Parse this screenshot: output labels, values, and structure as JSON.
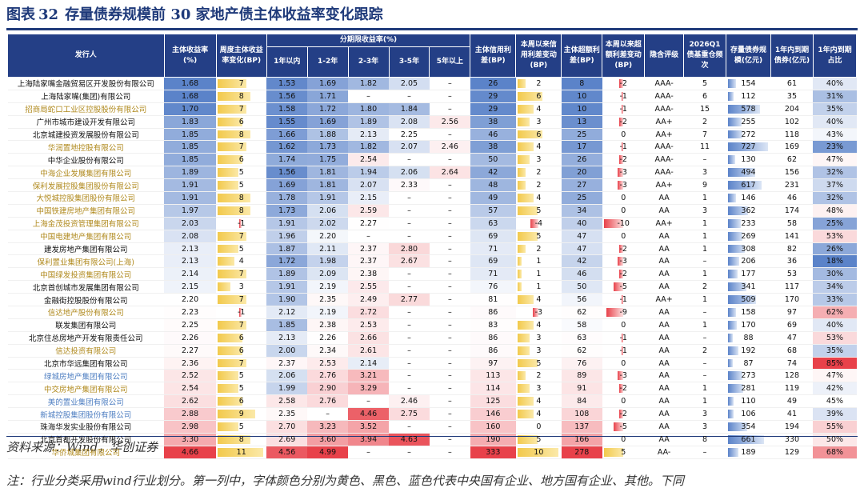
{
  "title": {
    "label": "图表",
    "number": "32",
    "text": "存量债券规模前 30 家地产债主体收益率变化跟踪"
  },
  "headers": {
    "issuer": "发行人",
    "yield": "主体收益率(%)",
    "weekly": "周度主体收益率变化(BP)",
    "term_group": "分期限收益率(%)",
    "terms": [
      "1年以内",
      "1-2年",
      "2-3年",
      "3-5年",
      "5年以上"
    ],
    "credit_spread": "主体信用利差(BP)",
    "credit_chg": "本周以来信用利差变动(BP)",
    "excess_spread": "主体超额利差(BP)",
    "excess_chg": "本周以来超额利差变动(BP)",
    "rating": "隐含评级",
    "freq": "2026Q1债基重仓频次",
    "stock": "存量债券规模(亿元)",
    "due": "1年内到期债券(亿元)",
    "due_ratio": "1年内到期占比"
  },
  "rows": [
    {
      "issuer": "上海陆家嘴金融贸易区开发股份有限公司",
      "color": "black",
      "yield": "1.68",
      "wk": 7,
      "t1": "1.53",
      "t2": "1.69",
      "t3": "1.82",
      "t4": "2.05",
      "t5": "–",
      "cs": "26",
      "cc": 2,
      "es": "8",
      "ec": -2,
      "rating": "AAA-",
      "freq": "5",
      "stock": 154,
      "due": "61",
      "ratio": "40%"
    },
    {
      "issuer": "上海陆家嘴(集团)有限公司",
      "color": "black",
      "yield": "1.68",
      "wk": 8,
      "t1": "1.56",
      "t2": "1.71",
      "t3": "–",
      "t4": "–",
      "t5": "–",
      "cs": "29",
      "cc": 6,
      "es": "10",
      "ec": -1,
      "rating": "AAA-",
      "freq": "6",
      "stock": 112,
      "due": "35",
      "ratio": "31%"
    },
    {
      "issuer": "招商局蛇口工业区控股股份有限公司",
      "color": "gold",
      "yield": "1.70",
      "wk": 7,
      "t1": "1.58",
      "t2": "1.72",
      "t3": "1.80",
      "t4": "1.84",
      "t5": "–",
      "cs": "29",
      "cc": 4,
      "es": "10",
      "ec": -1,
      "rating": "AAA-",
      "freq": "15",
      "stock": 578,
      "due": "204",
      "ratio": "35%"
    },
    {
      "issuer": "广州市城市建设开发有限公司",
      "color": "black",
      "yield": "1.83",
      "wk": 6,
      "t1": "1.55",
      "t2": "1.69",
      "t3": "1.89",
      "t4": "2.08",
      "t5": "2.56",
      "cs": "38",
      "cc": 3,
      "es": "13",
      "ec": -2,
      "rating": "AA+",
      "freq": "2",
      "stock": 255,
      "due": "102",
      "ratio": "40%"
    },
    {
      "issuer": "北京城建投资发展股份有限公司",
      "color": "black",
      "yield": "1.85",
      "wk": 8,
      "t1": "1.66",
      "t2": "1.88",
      "t3": "2.13",
      "t4": "2.25",
      "t5": "–",
      "cs": "46",
      "cc": 6,
      "es": "25",
      "ec": 0,
      "rating": "AA+",
      "freq": "7",
      "stock": 272,
      "due": "118",
      "ratio": "43%"
    },
    {
      "issuer": "华润置地控股有限公司",
      "color": "gold",
      "yield": "1.85",
      "wk": 7,
      "t1": "1.62",
      "t2": "1.73",
      "t3": "1.82",
      "t4": "2.07",
      "t5": "2.46",
      "cs": "38",
      "cc": 4,
      "es": "17",
      "ec": -1,
      "rating": "AAA-",
      "freq": "11",
      "stock": 727,
      "due": "169",
      "ratio": "23%"
    },
    {
      "issuer": "中华企业股份有限公司",
      "color": "black",
      "yield": "1.85",
      "wk": 6,
      "t1": "1.74",
      "t2": "1.75",
      "t3": "2.54",
      "t4": "–",
      "t5": "–",
      "cs": "50",
      "cc": 3,
      "es": "26",
      "ec": -2,
      "rating": "AAA-",
      "freq": "–",
      "stock": 130,
      "due": "62",
      "ratio": "47%"
    },
    {
      "issuer": "中海企业发展集团有限公司",
      "color": "gold",
      "yield": "1.89",
      "wk": 5,
      "t1": "1.56",
      "t2": "1.81",
      "t3": "1.94",
      "t4": "2.06",
      "t5": "2.64",
      "cs": "42",
      "cc": 2,
      "es": "20",
      "ec": -3,
      "rating": "AAA-",
      "freq": "3",
      "stock": 494,
      "due": "156",
      "ratio": "32%"
    },
    {
      "issuer": "保利发展控股集团股份有限公司",
      "color": "gold",
      "yield": "1.91",
      "wk": 5,
      "t1": "1.69",
      "t2": "1.81",
      "t3": "2.07",
      "t4": "2.33",
      "t5": "–",
      "cs": "48",
      "cc": 2,
      "es": "27",
      "ec": -3,
      "rating": "AA+",
      "freq": "9",
      "stock": 617,
      "due": "231",
      "ratio": "37%"
    },
    {
      "issuer": "大悦城控股集团股份有限公司",
      "color": "gold",
      "yield": "1.91",
      "wk": 8,
      "t1": "1.78",
      "t2": "1.91",
      "t3": "2.15",
      "t4": "–",
      "t5": "–",
      "cs": "49",
      "cc": 4,
      "es": "25",
      "ec": 0,
      "rating": "AA",
      "freq": "1",
      "stock": 146,
      "due": "46",
      "ratio": "32%"
    },
    {
      "issuer": "中国铁建房地产集团有限公司",
      "color": "gold",
      "yield": "1.97",
      "wk": 8,
      "t1": "1.73",
      "t2": "2.06",
      "t3": "2.59",
      "t4": "–",
      "t5": "–",
      "cs": "57",
      "cc": 5,
      "es": "34",
      "ec": 0,
      "rating": "AA",
      "freq": "3",
      "stock": 362,
      "due": "174",
      "ratio": "48%"
    },
    {
      "issuer": "上海金茂投资管理集团有限公司",
      "color": "gold",
      "yield": "2.03",
      "wk": -1,
      "t1": "1.91",
      "t2": "2.02",
      "t3": "2.27",
      "t4": "–",
      "t5": "–",
      "cs": "63",
      "cc": -4,
      "es": "40",
      "ec": -10,
      "rating": "AA+",
      "freq": "1",
      "stock": 233,
      "due": "58",
      "ratio": "25%"
    },
    {
      "issuer": "中国电建地产集团有限公司",
      "color": "gold",
      "yield": "2.08",
      "wk": 7,
      "t1": "1.96",
      "t2": "2.20",
      "t3": "–",
      "t4": "–",
      "t5": "–",
      "cs": "69",
      "cc": 5,
      "es": "47",
      "ec": 0,
      "rating": "AA",
      "freq": "1",
      "stock": 269,
      "due": "141",
      "ratio": "53%"
    },
    {
      "issuer": "建发房地产集团有限公司",
      "color": "black",
      "yield": "2.13",
      "wk": 5,
      "t1": "1.87",
      "t2": "2.11",
      "t3": "2.37",
      "t4": "2.80",
      "t5": "–",
      "cs": "71",
      "cc": 2,
      "es": "47",
      "ec": -2,
      "rating": "AA",
      "freq": "1",
      "stock": 308,
      "due": "82",
      "ratio": "26%"
    },
    {
      "issuer": "保利置业集团有限公司(上海)",
      "color": "gold",
      "yield": "2.13",
      "wk": 4,
      "t1": "1.72",
      "t2": "1.98",
      "t3": "2.37",
      "t4": "2.67",
      "t5": "–",
      "cs": "69",
      "cc": 1,
      "es": "42",
      "ec": -3,
      "rating": "AA",
      "freq": "–",
      "stock": 206,
      "due": "36",
      "ratio": "18%"
    },
    {
      "issuer": "中国绿发投资集团有限公司",
      "color": "gold",
      "yield": "2.14",
      "wk": 7,
      "t1": "1.89",
      "t2": "2.09",
      "t3": "2.38",
      "t4": "–",
      "t5": "–",
      "cs": "71",
      "cc": 1,
      "es": "46",
      "ec": -2,
      "rating": "AA",
      "freq": "1",
      "stock": 177,
      "due": "53",
      "ratio": "30%"
    },
    {
      "issuer": "北京首创城市发展集团有限公司",
      "color": "black",
      "yield": "2.15",
      "wk": 3,
      "t1": "1.91",
      "t2": "2.19",
      "t3": "2.55",
      "t4": "–",
      "t5": "–",
      "cs": "76",
      "cc": 1,
      "es": "50",
      "ec": -5,
      "rating": "AA",
      "freq": "2",
      "stock": 341,
      "due": "117",
      "ratio": "34%"
    },
    {
      "issuer": "金融街控股股份有限公司",
      "color": "black",
      "yield": "2.20",
      "wk": 7,
      "t1": "1.90",
      "t2": "2.35",
      "t3": "2.49",
      "t4": "2.77",
      "t5": "–",
      "cs": "81",
      "cc": 4,
      "es": "56",
      "ec": -1,
      "rating": "AA+",
      "freq": "1",
      "stock": 509,
      "due": "170",
      "ratio": "33%"
    },
    {
      "issuer": "信达地产股份有限公司",
      "color": "gold",
      "yield": "2.23",
      "wk": -1,
      "t1": "2.12",
      "t2": "2.19",
      "t3": "2.72",
      "t4": "–",
      "t5": "–",
      "cs": "86",
      "cc": -3,
      "es": "62",
      "ec": -9,
      "rating": "AA",
      "freq": "–",
      "stock": 158,
      "due": "97",
      "ratio": "62%"
    },
    {
      "issuer": "联发集团有限公司",
      "color": "black",
      "yield": "2.25",
      "wk": 7,
      "t1": "1.85",
      "t2": "2.38",
      "t3": "2.53",
      "t4": "–",
      "t5": "–",
      "cs": "83",
      "cc": 4,
      "es": "58",
      "ec": 0,
      "rating": "AA",
      "freq": "1",
      "stock": 170,
      "due": "69",
      "ratio": "40%"
    },
    {
      "issuer": "北京住总房地产开发有限责任公司",
      "color": "black",
      "yield": "2.26",
      "wk": 6,
      "t1": "2.13",
      "t2": "2.26",
      "t3": "2.66",
      "t4": "–",
      "t5": "–",
      "cs": "86",
      "cc": 3,
      "es": "63",
      "ec": -1,
      "rating": "AA",
      "freq": "–",
      "stock": 88,
      "due": "47",
      "ratio": "53%"
    },
    {
      "issuer": "信达投资有限公司",
      "color": "gold",
      "yield": "2.27",
      "wk": 6,
      "t1": "2.00",
      "t2": "2.34",
      "t3": "2.61",
      "t4": "–",
      "t5": "–",
      "cs": "86",
      "cc": 3,
      "es": "62",
      "ec": -1,
      "rating": "AA",
      "freq": "2",
      "stock": 192,
      "due": "68",
      "ratio": "35%"
    },
    {
      "issuer": "北京市华远集团有限公司",
      "color": "black",
      "yield": "2.36",
      "wk": 7,
      "t1": "2.37",
      "t2": "2.53",
      "t3": "2.14",
      "t4": "–",
      "t5": "–",
      "cs": "97",
      "cc": 5,
      "es": "76",
      "ec": 0,
      "rating": "AA",
      "freq": "–",
      "stock": 87,
      "due": "74",
      "ratio": "85%"
    },
    {
      "issuer": "绿城房地产集团有限公司",
      "color": "blue",
      "yield": "2.52",
      "wk": 5,
      "t1": "2.06",
      "t2": "2.76",
      "t3": "3.21",
      "t4": "–",
      "t5": "–",
      "cs": "113",
      "cc": 2,
      "es": "89",
      "ec": -3,
      "rating": "AA",
      "freq": "–",
      "stock": 273,
      "due": "128",
      "ratio": "47%"
    },
    {
      "issuer": "中交房地产集团有限公司",
      "color": "gold",
      "yield": "2.54",
      "wk": 5,
      "t1": "1.99",
      "t2": "2.90",
      "t3": "3.29",
      "t4": "–",
      "t5": "–",
      "cs": "114",
      "cc": 3,
      "es": "91",
      "ec": -2,
      "rating": "AA",
      "freq": "1",
      "stock": 281,
      "due": "119",
      "ratio": "42%"
    },
    {
      "issuer": "美的置业集团有限公司",
      "color": "blue",
      "yield": "2.62",
      "wk": 6,
      "t1": "2.58",
      "t2": "2.76",
      "t3": "–",
      "t4": "2.46",
      "t5": "–",
      "cs": "125",
      "cc": 4,
      "es": "84",
      "ec": 0,
      "rating": "AA",
      "freq": "1",
      "stock": 110,
      "due": "49",
      "ratio": "45%"
    },
    {
      "issuer": "新城控股集团股份有限公司",
      "color": "blue",
      "yield": "2.88",
      "wk": 9,
      "t1": "2.35",
      "t2": "–",
      "t3": "4.46",
      "t4": "2.75",
      "t5": "–",
      "cs": "146",
      "cc": 4,
      "es": "108",
      "ec": -2,
      "rating": "AA",
      "freq": "3",
      "stock": 106,
      "due": "41",
      "ratio": "39%"
    },
    {
      "issuer": "珠海华发实业股份有限公司",
      "color": "black",
      "yield": "2.98",
      "wk": 5,
      "t1": "2.70",
      "t2": "3.23",
      "t3": "3.52",
      "t4": "–",
      "t5": "–",
      "cs": "160",
      "cc": 0,
      "es": "137",
      "ec": -5,
      "rating": "AA",
      "freq": "3",
      "stock": 354,
      "due": "194",
      "ratio": "55%"
    },
    {
      "issuer": "北京首都开发股份有限公司",
      "color": "black",
      "yield": "3.30",
      "wk": 8,
      "t1": "2.69",
      "t2": "3.60",
      "t3": "3.94",
      "t4": "4.63",
      "t5": "–",
      "cs": "190",
      "cc": 5,
      "es": "166",
      "ec": 0,
      "rating": "AA",
      "freq": "8",
      "stock": 661,
      "due": "330",
      "ratio": "50%"
    },
    {
      "issuer": "华侨城集团有限公司",
      "color": "gold",
      "yield": "4.66",
      "wk": 11,
      "t1": "4.56",
      "t2": "4.99",
      "t3": "–",
      "t4": "–",
      "t5": "–",
      "cs": "333",
      "cc": 10,
      "es": "278",
      "ec": 5,
      "rating": "AA-",
      "freq": "–",
      "stock": 189,
      "due": "129",
      "ratio": "68%"
    }
  ],
  "footer": {
    "source": "资料来源：Wind，华创证券",
    "note": "注：行业分类采用wind行业划分。第一列中，字体颜色分别为黄色、黑色、蓝色代表中央国有企业、地方国有企业、其他。下同"
  },
  "colors": {
    "header_bg": "#243f86",
    "gold": "#b08a1e",
    "blue": "#4f7fc2",
    "bar_yellow": "#f2c94c",
    "bar_blue": "#5b83c9",
    "bar_red": "#e8414a"
  }
}
